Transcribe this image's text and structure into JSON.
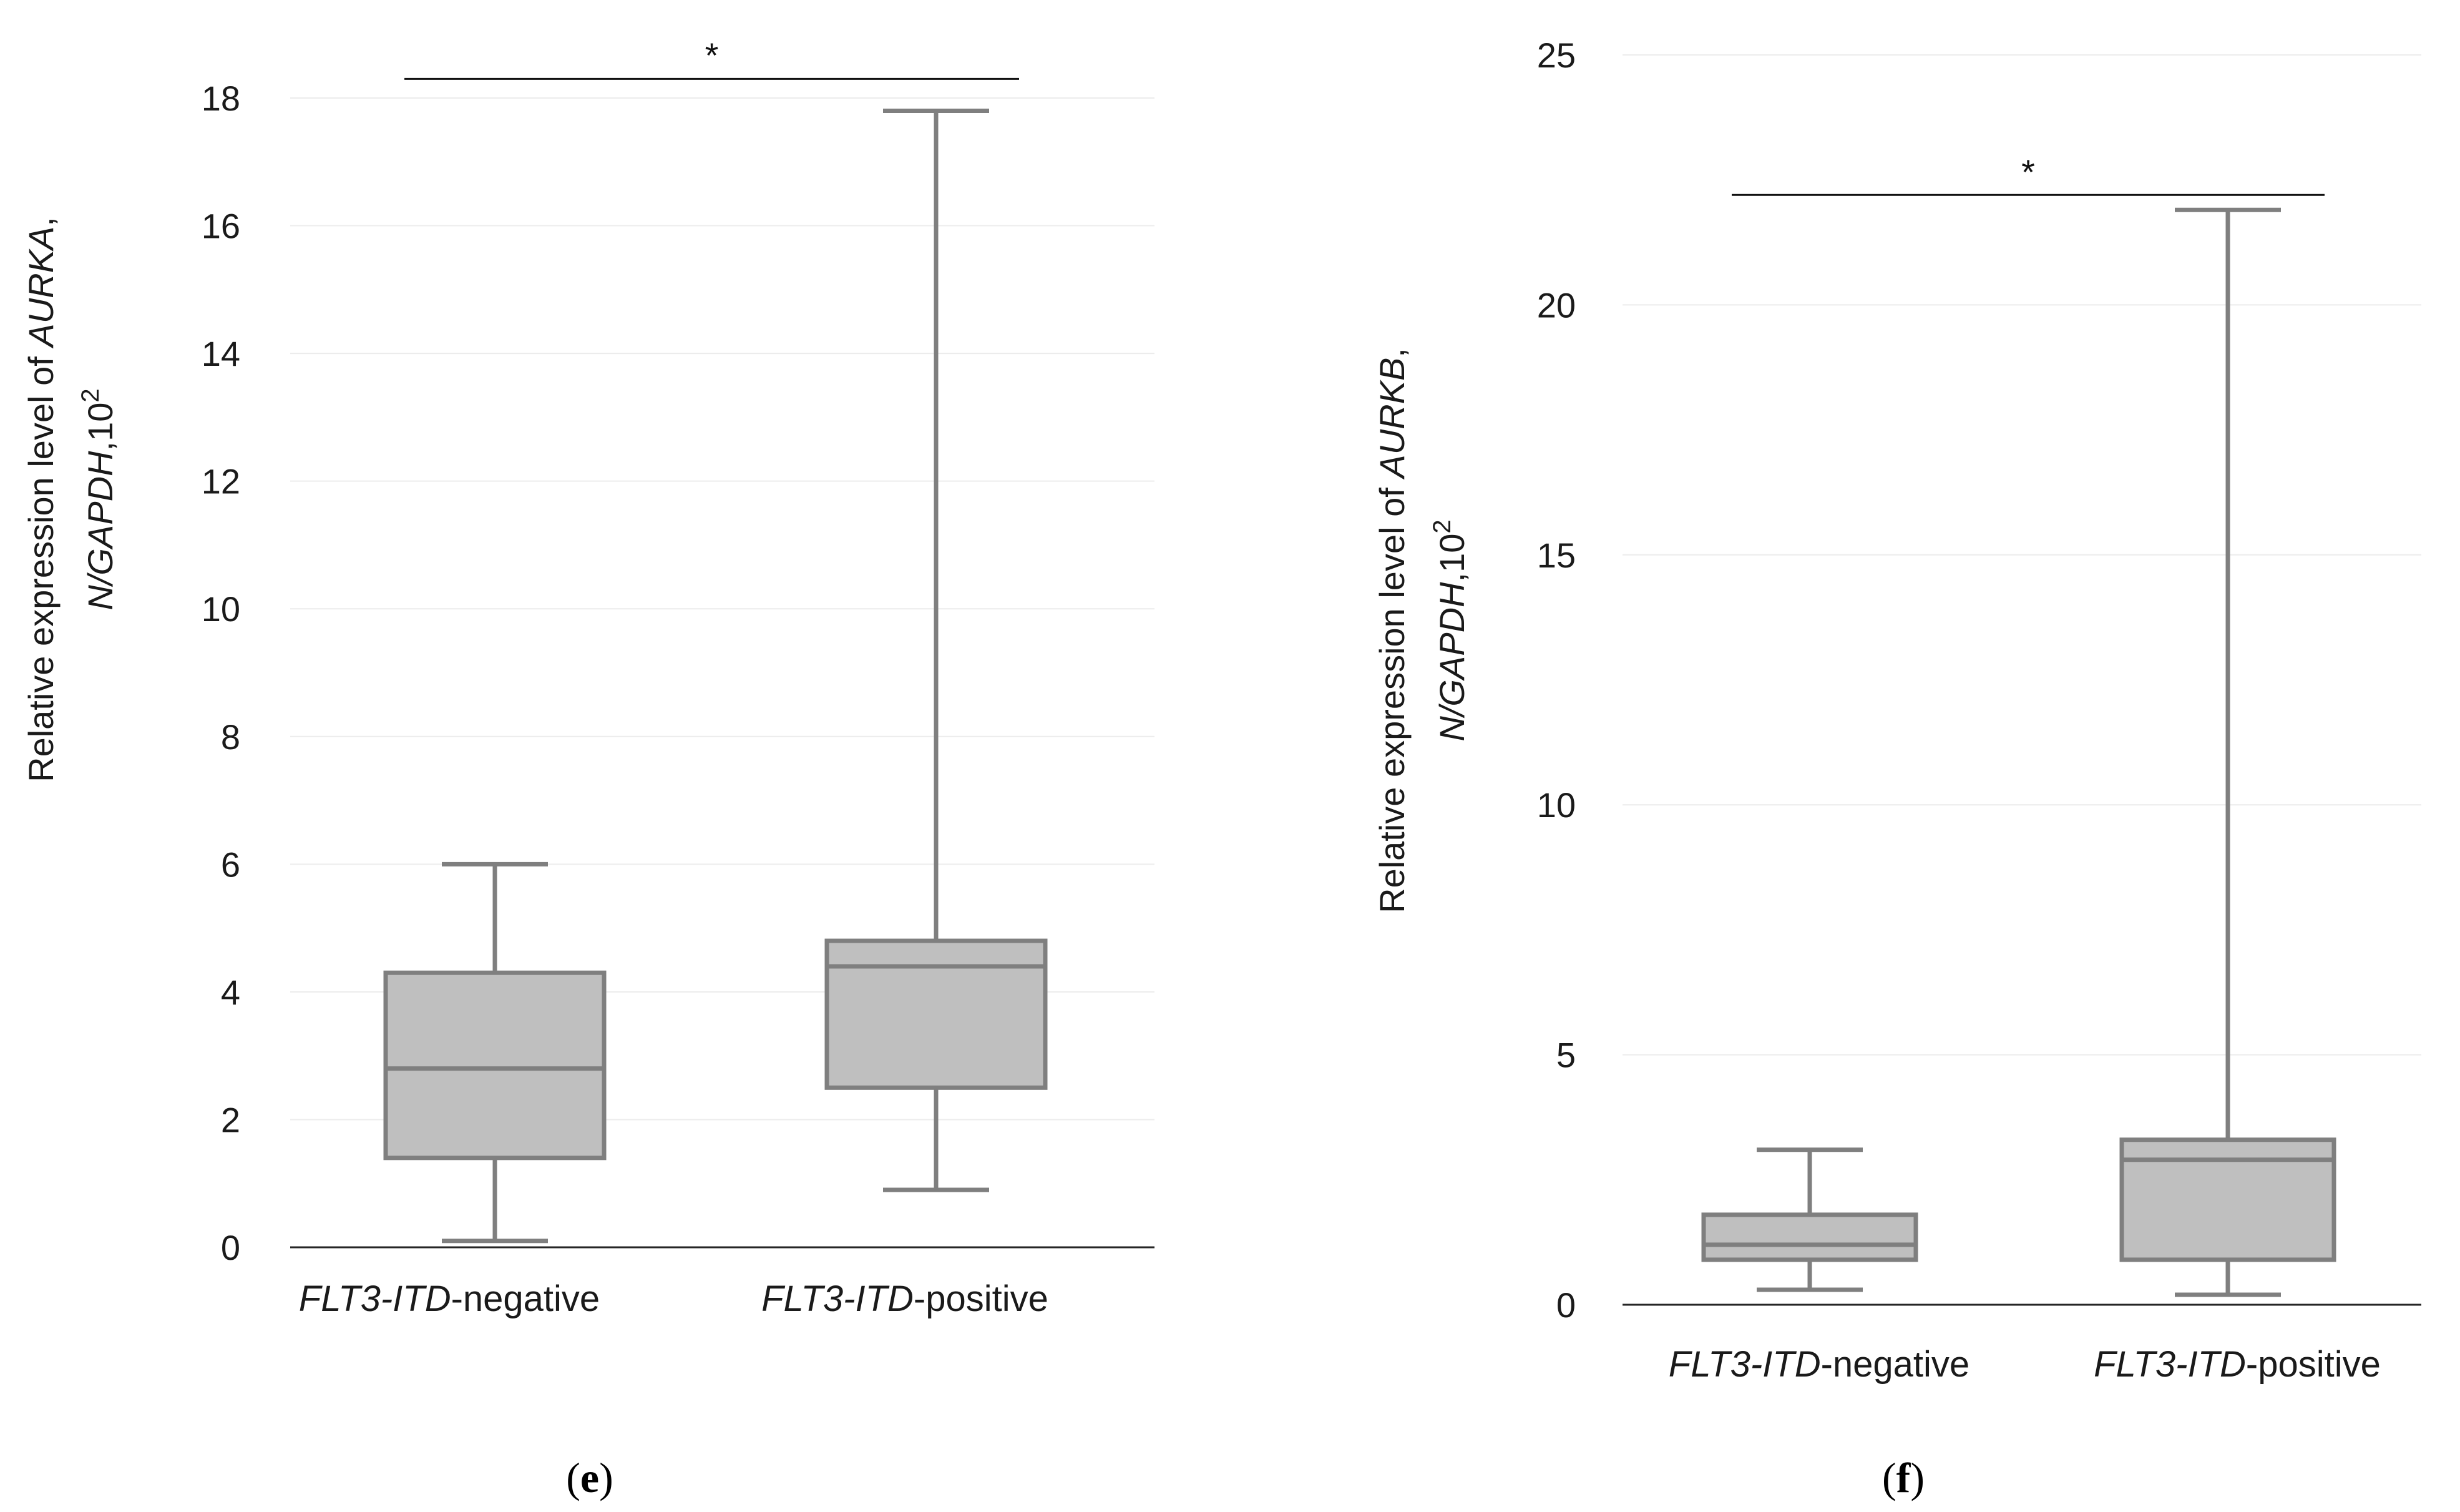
{
  "chart_data": [
    {
      "type": "box",
      "panel": "e",
      "ylabel": {
        "line1_prefix": "Relative expression level of ",
        "line1_gene": "AURKA",
        "line1_suffix": ",",
        "line2_ref": "N/GAPDH",
        "line2_unit": ",10",
        "line2_exp": "2"
      },
      "ylim": [
        0,
        18
      ],
      "yticks": [
        0,
        2,
        4,
        6,
        8,
        10,
        12,
        14,
        16,
        18
      ],
      "categories": [
        {
          "italic": "FLT3-ITD",
          "rest": "-negative"
        },
        {
          "italic": "FLT3-ITD",
          "rest": "-positive"
        }
      ],
      "boxes": [
        {
          "min": 0.1,
          "q1": 1.4,
          "median": 2.8,
          "q3": 4.3,
          "max": 6.0
        },
        {
          "min": 0.9,
          "q1": 2.5,
          "median": 4.4,
          "q3": 4.8,
          "max": 17.8
        }
      ],
      "significance": {
        "symbol": "*",
        "y": 18.3
      }
    },
    {
      "type": "box",
      "panel": "f",
      "ylabel": {
        "line1_prefix": "Relative expression level of ",
        "line1_gene": "AURKB",
        "line1_suffix": ",",
        "line2_ref": "N/GAPDH",
        "line2_unit": ",10",
        "line2_exp": "2"
      },
      "ylim": [
        0,
        25
      ],
      "yticks": [
        0,
        5,
        10,
        15,
        20,
        25
      ],
      "categories": [
        {
          "italic": "FLT3-ITD",
          "rest": "-negative"
        },
        {
          "italic": "FLT3-ITD",
          "rest": "-positive"
        }
      ],
      "boxes": [
        {
          "min": 0.3,
          "q1": 0.9,
          "median": 1.2,
          "q3": 1.8,
          "max": 3.1
        },
        {
          "min": 0.2,
          "q1": 0.9,
          "median": 2.9,
          "q3": 3.3,
          "max": 21.9
        }
      ],
      "significance": {
        "symbol": "*",
        "y": 22.2
      }
    }
  ],
  "panel_labels": [
    "e",
    "f"
  ]
}
